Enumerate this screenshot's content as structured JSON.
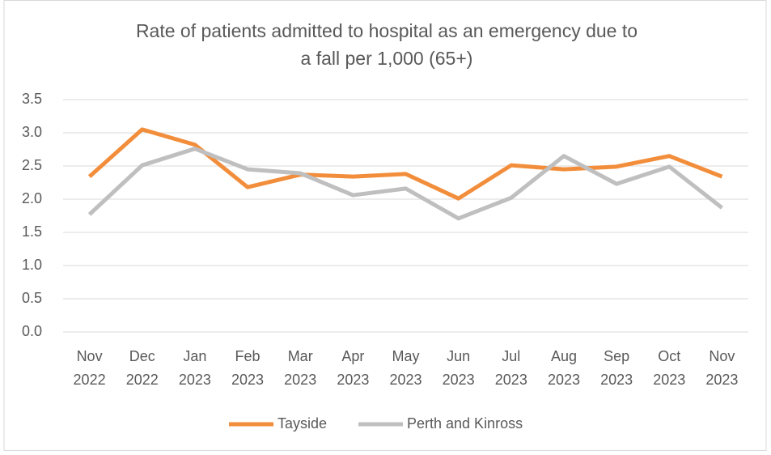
{
  "chart_data": {
    "type": "line",
    "title": "Rate of patients admitted to hospital as an emergency due to a fall per 1,000 (65+)",
    "categories": [
      "Nov 2022",
      "Dec 2022",
      "Jan 2023",
      "Feb 2023",
      "Mar 2023",
      "Apr 2023",
      "May 2023",
      "Jun 2023",
      "Jul 2023",
      "Aug 2023",
      "Sep 2023",
      "Oct 2023",
      "Nov 2023"
    ],
    "series": [
      {
        "name": "Tayside",
        "color": "#f28e3b",
        "values": [
          2.34,
          3.05,
          2.82,
          2.18,
          2.37,
          2.34,
          2.38,
          2.01,
          2.51,
          2.45,
          2.49,
          2.65,
          2.34
        ]
      },
      {
        "name": "Perth and Kinross",
        "color": "#bfbfbf",
        "values": [
          1.77,
          2.51,
          2.76,
          2.45,
          2.39,
          2.06,
          2.16,
          1.71,
          2.02,
          2.65,
          2.23,
          2.49,
          1.87
        ]
      }
    ],
    "ylim": [
      0,
      3.5
    ],
    "yticks": [
      {
        "value": 0,
        "label": "0.0"
      },
      0.5,
      {
        "value": 1,
        "label": "1.0"
      },
      1.5,
      {
        "value": 2,
        "label": "2.0"
      },
      2.5,
      {
        "value": 3,
        "label": "3.0"
      },
      3.5
    ],
    "grid": true,
    "legend": "bottom"
  }
}
